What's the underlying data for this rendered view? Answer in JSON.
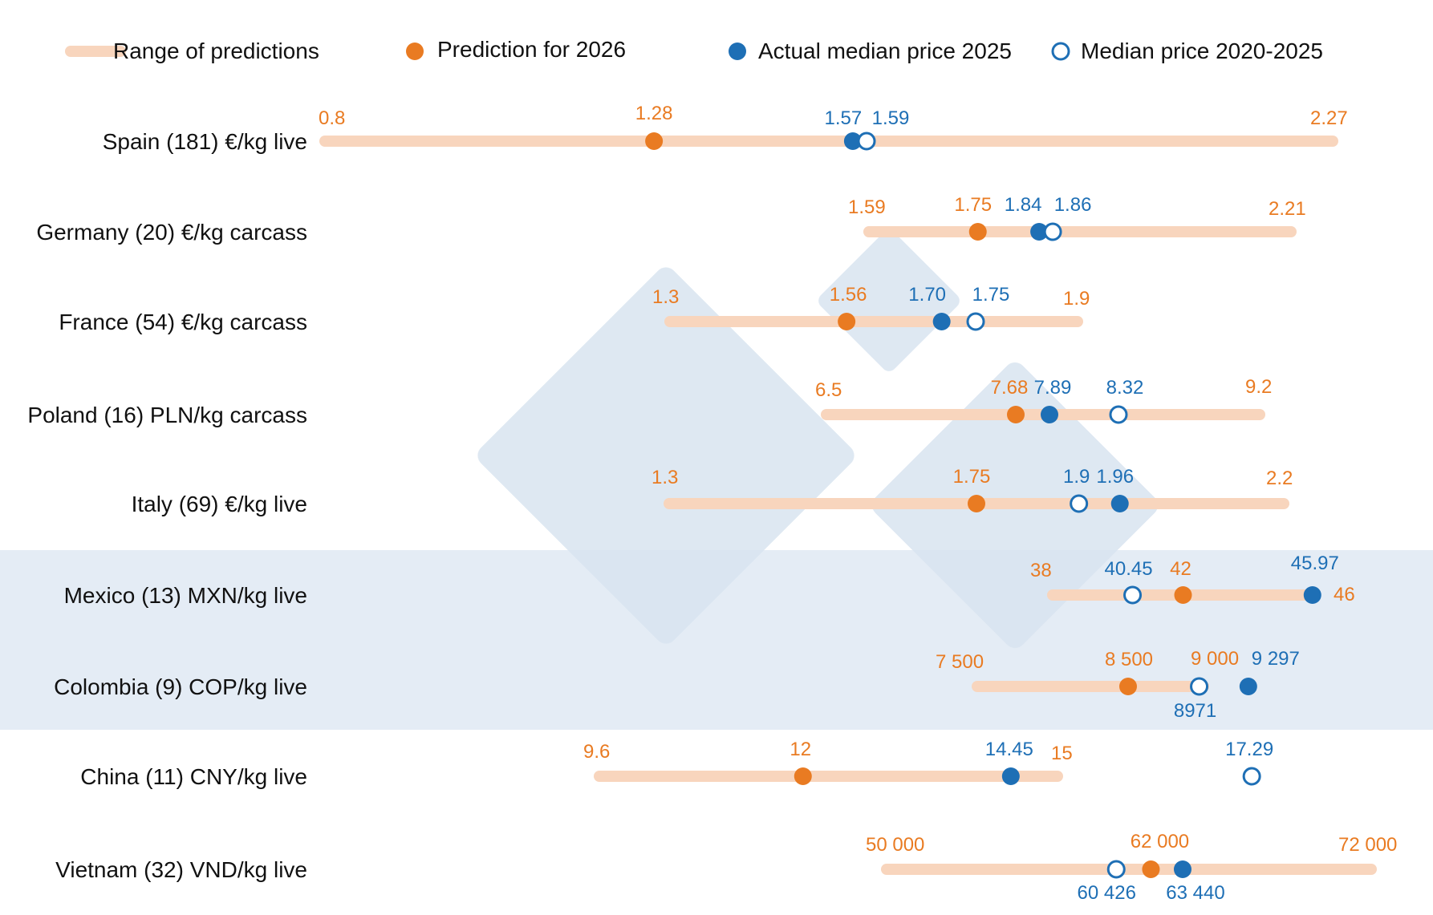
{
  "colors": {
    "range": "#f8d5bd",
    "prediction": "#e97b22",
    "actual": "#1e6fb5",
    "band": "#e4ecf5",
    "watermark": "#d9e4f0"
  },
  "legend": {
    "range": "Range of predictions",
    "prediction": "Prediction for 2026",
    "actual": "Actual median price 2025",
    "median": "Median price 2020-2025"
  },
  "chart_data": {
    "type": "range-dot",
    "rows": [
      {
        "label": "Spain (181) €/kg live",
        "min": 0.8,
        "max": 2.27,
        "prediction": 1.28,
        "actual": 1.57,
        "median": 1.59,
        "min_label": "0.8",
        "max_label": "2.27",
        "prediction_label": "1.28",
        "actual_label": "1.57",
        "median_label": "1.59"
      },
      {
        "label": "Germany (20) €/kg carcass",
        "min": 1.59,
        "max": 2.21,
        "prediction": 1.75,
        "actual": 1.84,
        "median": 1.86,
        "min_label": "1.59",
        "max_label": "2.21",
        "prediction_label": "1.75",
        "actual_label": "1.84",
        "median_label": "1.86"
      },
      {
        "label": "France (54) €/kg carcass",
        "min": 1.3,
        "max": 1.9,
        "prediction": 1.56,
        "actual": 1.7,
        "median": 1.75,
        "min_label": "1.3",
        "max_label": "1.9",
        "prediction_label": "1.56",
        "actual_label": "1.70",
        "median_label": "1.75"
      },
      {
        "label": "Poland (16) PLN/kg carcass",
        "min": 6.5,
        "max": 9.2,
        "prediction": 7.68,
        "actual": 7.89,
        "median": 8.32,
        "min_label": "6.5",
        "max_label": "9.2",
        "prediction_label": "7.68",
        "actual_label": "7.89",
        "median_label": "8.32"
      },
      {
        "label": "Italy (69) €/kg live",
        "min": 1.3,
        "max": 2.2,
        "prediction": 1.75,
        "actual": 1.96,
        "median": 1.9,
        "min_label": "1.3",
        "max_label": "2.2",
        "prediction_label": "1.75",
        "actual_label": "1.96",
        "median_label": "1.9"
      },
      {
        "label": "Mexico (13) MXN/kg live",
        "min": 38,
        "max": 46,
        "prediction": 42,
        "actual": 45.97,
        "median": 40.45,
        "min_label": "38",
        "max_label": "46",
        "prediction_label": "42",
        "actual_label": "45.97",
        "median_label": "40.45"
      },
      {
        "label": "Colombia (9) COP/kg live",
        "min": 7500,
        "max": 9000,
        "prediction": 8500,
        "actual": 9297,
        "median": 8971,
        "min_label": "7 500",
        "max_label": "9 000",
        "prediction_label": "8 500",
        "actual_label": "9 297",
        "median_label": "8971"
      },
      {
        "label": "China (11) CNY/kg live",
        "min": 9.6,
        "max": 15,
        "prediction": 12,
        "actual": 14.45,
        "median": 17.29,
        "min_label": "9.6",
        "max_label": "15",
        "prediction_label": "12",
        "actual_label": "14.45",
        "median_label": "17.29"
      },
      {
        "label": "Vietnam (32) VND/kg live",
        "min": 50000,
        "max": 72000,
        "prediction": 62000,
        "actual": 63440,
        "median": 60426,
        "min_label": "50 000",
        "max_label": "72 000",
        "prediction_label": "62 000",
        "actual_label": "63 440",
        "median_label": "60 426"
      }
    ]
  }
}
